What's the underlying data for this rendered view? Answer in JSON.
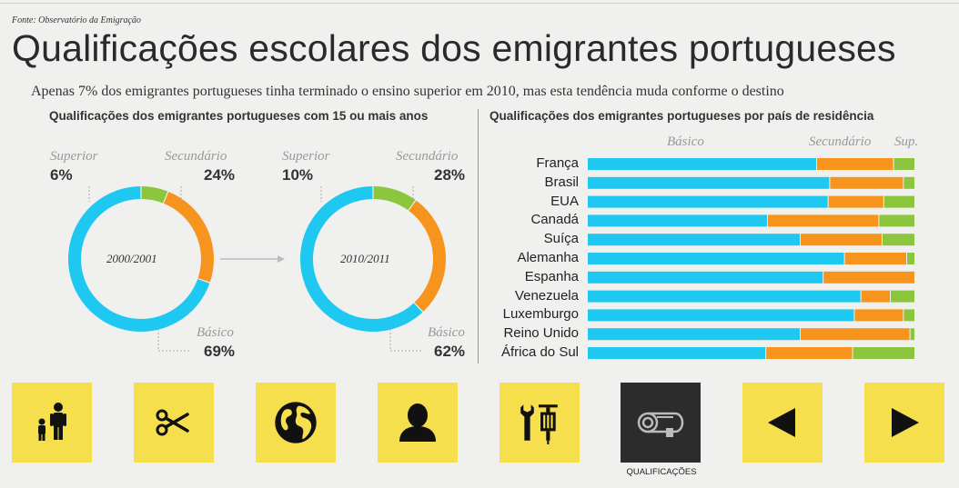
{
  "header": {
    "source": "Fonte: Observatório da Emigração",
    "title": "Qualificações escolares dos emigrantes portugueses",
    "subtitle": "Apenas 7% dos emigrantes portugueses tinha terminado o ensino superior em 2010, mas esta tendência muda conforme o destino"
  },
  "colors": {
    "basico": "#1ec8f0",
    "secundario": "#f7941d",
    "superior": "#8cc63f"
  },
  "left_title": "Qualificações dos emigrantes portugueses com 15 ou mais anos",
  "right_title": "Qualificações dos emigrantes portugueses por país de residência",
  "chart_data": [
    {
      "type": "pie",
      "title": "2000/2001",
      "labels": [
        "Superior",
        "Secundário",
        "Básico"
      ],
      "values": [
        6,
        24,
        69
      ],
      "display": [
        "6%",
        "24%",
        "69%"
      ]
    },
    {
      "type": "pie",
      "title": "2010/2011",
      "labels": [
        "Superior",
        "Secundário",
        "Básico"
      ],
      "values": [
        10,
        28,
        62
      ],
      "display": [
        "10%",
        "28%",
        "62%"
      ]
    },
    {
      "type": "bar",
      "orientation": "horizontal",
      "stacked": true,
      "legend_headers": [
        "Básico",
        "Secundário",
        "Sup."
      ],
      "categories": [
        "França",
        "Brasil",
        "EUA",
        "Canadá",
        "Suíça",
        "Alemanha",
        "Espanha",
        "Venezuela",
        "Luxemburgo",
        "Reino Unido",
        "África do Sul"
      ],
      "series": [
        {
          "name": "Básico",
          "values": [
            70,
            74,
            73.5,
            55,
            65,
            78.5,
            72,
            83.5,
            81.5,
            65,
            54.5
          ]
        },
        {
          "name": "Secundário",
          "values": [
            23.5,
            22.5,
            17,
            34,
            25,
            19,
            28,
            9,
            15,
            33.5,
            26.5
          ]
        },
        {
          "name": "Superior",
          "values": [
            6.5,
            3.5,
            9.5,
            11,
            10,
            2.5,
            0,
            7.5,
            3.5,
            1.5,
            19
          ]
        }
      ]
    }
  ],
  "nav": {
    "buttons": [
      {
        "name": "family",
        "icon": "family-icon"
      },
      {
        "name": "scissors",
        "icon": "scissors-icon"
      },
      {
        "name": "globe",
        "icon": "globe-icon"
      },
      {
        "name": "person",
        "icon": "person-icon"
      },
      {
        "name": "tools",
        "icon": "tools-icon"
      },
      {
        "name": "qualificacoes",
        "icon": "diploma-icon",
        "active": true
      },
      {
        "name": "prev",
        "icon": "arrow-left-icon"
      },
      {
        "name": "next",
        "icon": "arrow-right-icon"
      }
    ],
    "active_caption": "QUALIFICAÇÕES"
  }
}
